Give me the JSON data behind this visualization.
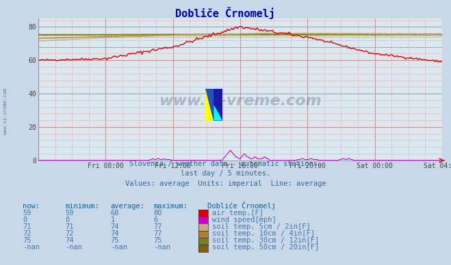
{
  "title": "Dobliče Črnomelj",
  "bg_color": "#c8d8e8",
  "plot_bg_color": "#dce8f0",
  "xlim": [
    0,
    288
  ],
  "ylim": [
    0,
    85
  ],
  "yticks": [
    0,
    20,
    40,
    60,
    80
  ],
  "xtick_labels": [
    "Fri 08:00",
    "Fri 12:00",
    "Fri 16:00",
    "Fri 20:00",
    "Sat 00:00",
    "Sat 04:00"
  ],
  "xtick_positions": [
    48,
    96,
    144,
    192,
    240,
    288
  ],
  "subtitle1": "Slovenia / weather data - automatic stations.",
  "subtitle2": "last day / 5 minutes.",
  "subtitle3": "Values: average  Units: imperial  Line: average",
  "watermark": "www.si-vreme.com",
  "legend_title": "Dobliče Črnomelj",
  "legend_items": [
    {
      "label": "air temp.[F]",
      "color": "#dd0000"
    },
    {
      "label": "wind speed[mph]",
      "color": "#cc00cc"
    },
    {
      "label": "soil temp. 5cm / 2in[F]",
      "color": "#c8aa80"
    },
    {
      "label": "soil temp. 10cm / 4in[F]",
      "color": "#b08030"
    },
    {
      "label": "soil temp. 30cm / 12in[F]",
      "color": "#788020"
    },
    {
      "label": "soil temp. 50cm / 20in[F]",
      "color": "#806010"
    }
  ],
  "table_headers": [
    "now:",
    "minimum:",
    "average:",
    "maximum:"
  ],
  "table_data": [
    [
      "59",
      "59",
      "68",
      "80"
    ],
    [
      "0",
      "0",
      "1",
      "6"
    ],
    [
      "71",
      "71",
      "74",
      "77"
    ],
    [
      "72",
      "72",
      "74",
      "77"
    ],
    [
      "75",
      "74",
      "75",
      "75"
    ],
    [
      "-nan",
      "-nan",
      "-nan",
      "-nan"
    ]
  ]
}
